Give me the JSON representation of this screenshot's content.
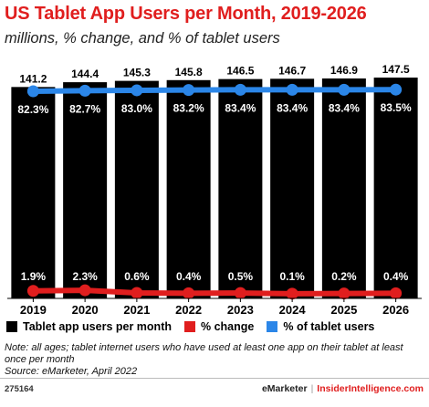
{
  "title": "US Tablet App Users per Month, 2019-2026",
  "subtitle": "millions, % change, and % of tablet users",
  "legend": {
    "users": "Tablet app users per month",
    "change": "% change",
    "share": "% of tablet users"
  },
  "notes": {
    "note": "Note: all ages; tablet internet users who have used at least one app on their tablet at least once per month",
    "source": "Source: eMarketer, April 2022"
  },
  "footer": {
    "id": "275164",
    "brand_left": "eMarketer",
    "separator": "|",
    "brand_right": "InsiderIntelligence.com"
  },
  "colors": {
    "bars": "#000000",
    "change_line": "#e01e1e",
    "share_line": "#2b86e8",
    "title": "#e01e1e"
  },
  "chart_data": {
    "type": "bar",
    "categories": [
      "2019",
      "2020",
      "2021",
      "2022",
      "2023",
      "2024",
      "2025",
      "2026"
    ],
    "series": [
      {
        "name": "Tablet app users per month",
        "type": "bar",
        "values": [
          141.2,
          144.4,
          145.3,
          145.8,
          146.5,
          146.7,
          146.9,
          147.5
        ],
        "labels": [
          "141.2",
          "144.4",
          "145.3",
          "145.8",
          "146.5",
          "146.7",
          "146.9",
          "147.5"
        ]
      },
      {
        "name": "% change",
        "type": "line",
        "values": [
          1.9,
          2.3,
          0.6,
          0.4,
          0.5,
          0.1,
          0.2,
          0.4
        ],
        "labels": [
          "1.9%",
          "2.3%",
          "0.6%",
          "0.4%",
          "0.5%",
          "0.1%",
          "0.2%",
          "0.4%"
        ]
      },
      {
        "name": "% of tablet users",
        "type": "line",
        "values": [
          82.3,
          82.7,
          83.0,
          83.2,
          83.4,
          83.4,
          83.4,
          83.5
        ],
        "labels": [
          "82.3%",
          "82.7%",
          "83.0%",
          "83.2%",
          "83.4%",
          "83.4%",
          "83.4%",
          "83.5%"
        ]
      }
    ]
  }
}
